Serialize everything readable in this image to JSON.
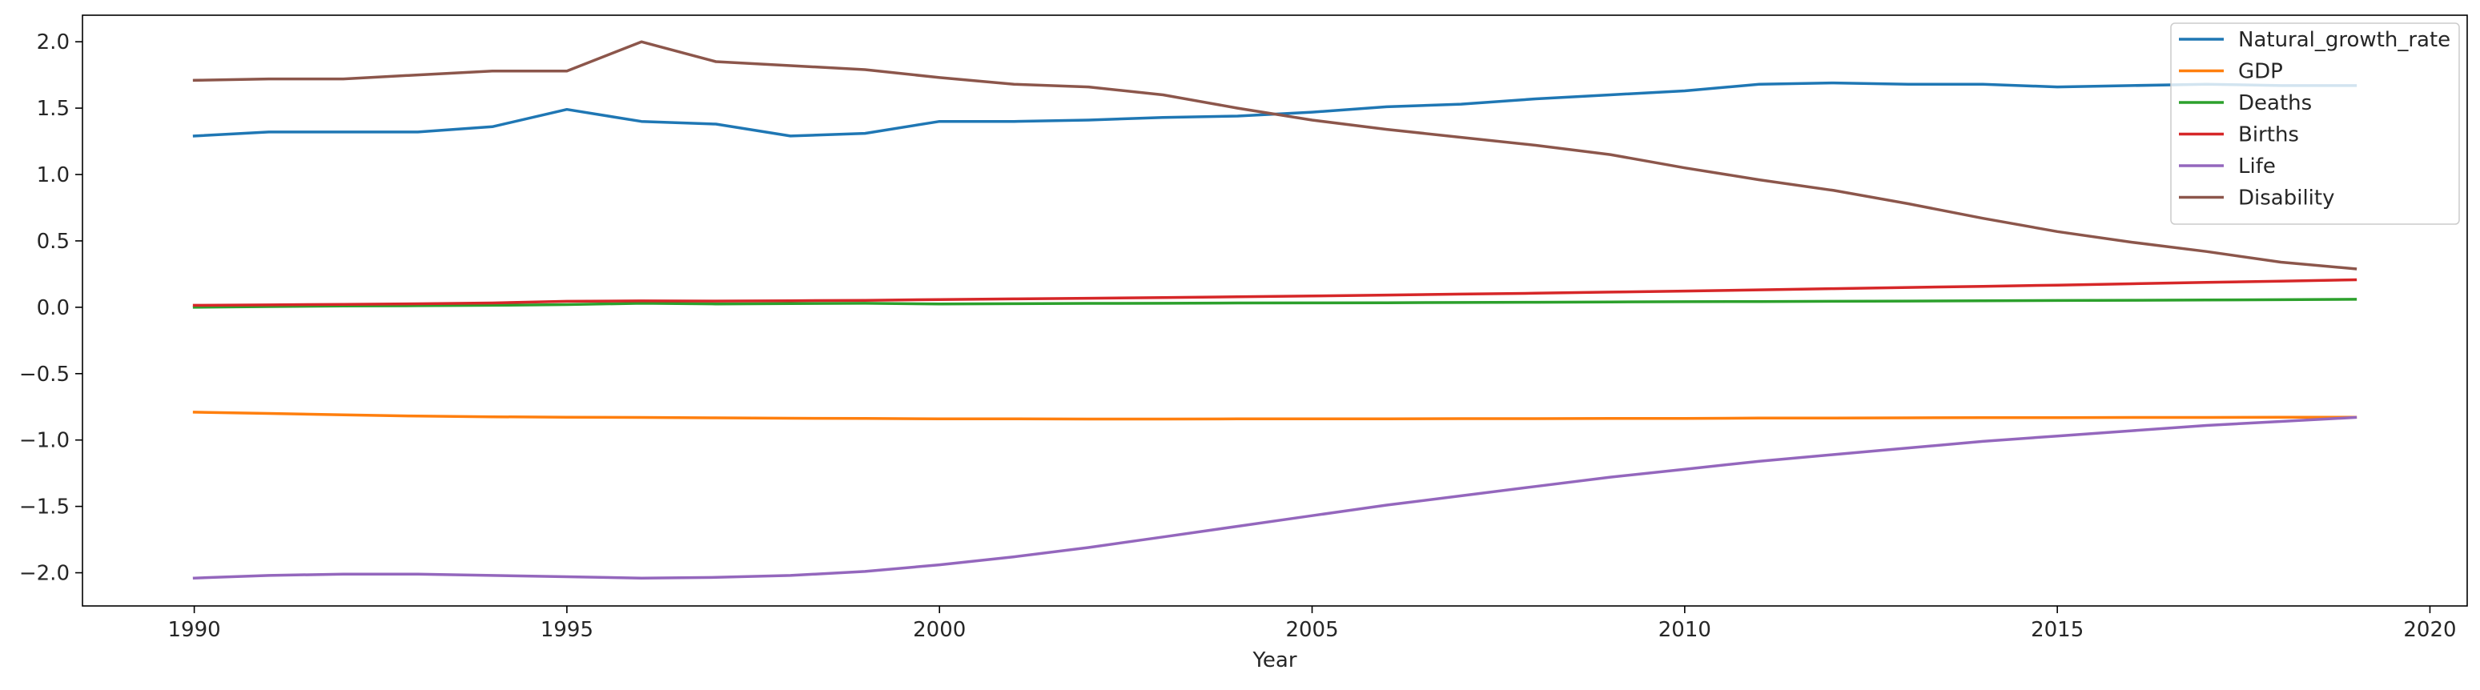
{
  "chart_data": {
    "type": "line",
    "title": "",
    "xlabel": "Year",
    "ylabel": "",
    "xlim": [
      1988.5,
      2020.5
    ],
    "ylim": [
      -2.25,
      2.2
    ],
    "xticks": [
      1990,
      1995,
      2000,
      2005,
      2010,
      2015,
      2020
    ],
    "yticks": [
      -2.0,
      -1.5,
      -1.0,
      -0.5,
      0.0,
      0.5,
      1.0,
      1.5,
      2.0
    ],
    "ytick_labels": [
      "−2.0",
      "−1.5",
      "−1.0",
      "−0.5",
      "0.0",
      "0.5",
      "1.0",
      "1.5",
      "2.0"
    ],
    "grid": false,
    "legend_position": "top-right",
    "x": [
      1990,
      1991,
      1992,
      1993,
      1994,
      1995,
      1996,
      1997,
      1998,
      1999,
      2000,
      2001,
      2002,
      2003,
      2004,
      2005,
      2006,
      2007,
      2008,
      2009,
      2010,
      2011,
      2012,
      2013,
      2014,
      2015,
      2016,
      2017,
      2018,
      2019
    ],
    "series": [
      {
        "name": "Natural_growth_rate",
        "color": "#1f77b4",
        "values": [
          1.29,
          1.32,
          1.32,
          1.32,
          1.36,
          1.49,
          1.4,
          1.38,
          1.29,
          1.31,
          1.4,
          1.4,
          1.41,
          1.43,
          1.44,
          1.47,
          1.51,
          1.53,
          1.57,
          1.6,
          1.63,
          1.68,
          1.69,
          1.68,
          1.68,
          1.66,
          1.67,
          1.68,
          1.67,
          1.67
        ]
      },
      {
        "name": "GDP",
        "color": "#ff7f0e",
        "values": [
          -0.79,
          -0.8,
          -0.81,
          -0.82,
          -0.825,
          -0.828,
          -0.83,
          -0.833,
          -0.836,
          -0.838,
          -0.84,
          -0.841,
          -0.842,
          -0.842,
          -0.841,
          -0.84,
          -0.84,
          -0.839,
          -0.839,
          -0.838,
          -0.837,
          -0.835,
          -0.834,
          -0.833,
          -0.832,
          -0.831,
          -0.83,
          -0.83,
          -0.829,
          -0.828
        ]
      },
      {
        "name": "Deaths",
        "color": "#2ca02c",
        "values": [
          0.0,
          0.005,
          0.01,
          0.012,
          0.015,
          0.02,
          0.03,
          0.025,
          0.028,
          0.03,
          0.025,
          0.027,
          0.029,
          0.03,
          0.032,
          0.033,
          0.034,
          0.036,
          0.038,
          0.04,
          0.042,
          0.043,
          0.045,
          0.047,
          0.049,
          0.051,
          0.053,
          0.055,
          0.057,
          0.06
        ]
      },
      {
        "name": "Births",
        "color": "#d62728",
        "values": [
          0.015,
          0.018,
          0.022,
          0.026,
          0.032,
          0.045,
          0.048,
          0.047,
          0.049,
          0.052,
          0.058,
          0.063,
          0.068,
          0.073,
          0.079,
          0.085,
          0.092,
          0.099,
          0.106,
          0.114,
          0.122,
          0.131,
          0.14,
          0.149,
          0.158,
          0.167,
          0.177,
          0.187,
          0.197,
          0.207
        ]
      },
      {
        "name": "Life",
        "color": "#9467bd",
        "values": [
          -2.04,
          -2.02,
          -2.01,
          -2.01,
          -2.02,
          -2.03,
          -2.04,
          -2.035,
          -2.02,
          -1.99,
          -1.94,
          -1.88,
          -1.81,
          -1.73,
          -1.65,
          -1.57,
          -1.49,
          -1.42,
          -1.35,
          -1.28,
          -1.22,
          -1.16,
          -1.11,
          -1.06,
          -1.01,
          -0.97,
          -0.93,
          -0.89,
          -0.86,
          -0.83
        ]
      },
      {
        "name": "Disability",
        "color": "#8c564b",
        "values": [
          1.71,
          1.72,
          1.72,
          1.75,
          1.78,
          1.78,
          2.0,
          1.85,
          1.82,
          1.79,
          1.73,
          1.68,
          1.66,
          1.6,
          1.5,
          1.41,
          1.34,
          1.28,
          1.22,
          1.15,
          1.05,
          0.96,
          0.88,
          0.78,
          0.67,
          0.57,
          0.49,
          0.42,
          0.34,
          0.29
        ]
      }
    ]
  }
}
